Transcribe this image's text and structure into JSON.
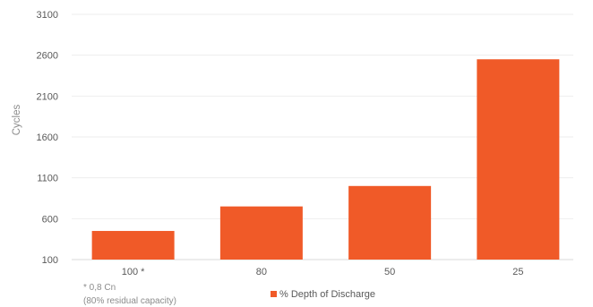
{
  "chart_data": {
    "type": "bar",
    "title": "",
    "xlabel": "",
    "ylabel": "Cycles",
    "categories": [
      "100 *",
      "80",
      "50",
      "25"
    ],
    "series": [
      {
        "name": "% Depth of Discharge",
        "values": [
          450,
          750,
          1000,
          2550
        ],
        "color": "#f05a28"
      }
    ],
    "ylim": [
      100,
      3100
    ],
    "yticks": [
      100,
      600,
      1100,
      1600,
      2100,
      2600,
      3100
    ],
    "grid": true,
    "legend": "bottom-center",
    "footnote": [
      "* 0,8 Cn",
      "(80% residual capacity)"
    ]
  }
}
